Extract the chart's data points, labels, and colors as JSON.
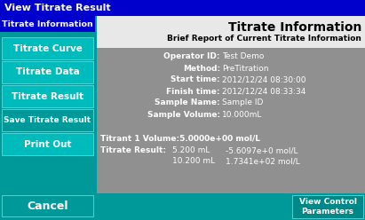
{
  "title_bar_text": "View Titrate Result",
  "title_bar_color": "#0000cc",
  "sidebar_color": "#009999",
  "sidebar_highlight_color": "#00bbbb",
  "sidebar_dark_color": "#007777",
  "main_bg_gray": "#888888",
  "header_bg": "#dddddd",
  "panel_title": "Titrate Information",
  "panel_subtitle": "Brief Report of Current Titrate Information",
  "sidebar_buttons": [
    {
      "label": "Titrate Information",
      "highlight": false
    },
    {
      "label": "Titrate Curve",
      "highlight": true
    },
    {
      "label": "Titrate Data",
      "highlight": true
    },
    {
      "label": "Titrate Result",
      "highlight": true
    },
    {
      "label": "Save Titrate Result",
      "highlight": false
    },
    {
      "label": "Print Out",
      "highlight": true
    }
  ],
  "cancel_button": "Cancel",
  "view_control_button": "View Control\nParameters",
  "info_labels": [
    "Operator ID:",
    "Method:",
    "Start time:",
    "Finish time:",
    "Sample Name:",
    "Sample Volume:"
  ],
  "info_values": [
    "Test Demo",
    "PreTitration",
    "2012/12/24 08:30:00",
    "2012/12/24 08:33:34",
    "Sample ID",
    "10.000mL"
  ],
  "titrant_line": "Titrant 1 Volume:5.0000e+00 mol/L",
  "result_line1_label": "Titrate Result:",
  "result_line1_val1": "5.200 mL",
  "result_line1_val2": "-5.6097e+0 mol/L",
  "result_line2_val1": "10.200 mL",
  "result_line2_val2": "1.7341e+02 mol/L",
  "white": "#ffffff",
  "black": "#000000",
  "teal_btn": "#008888"
}
